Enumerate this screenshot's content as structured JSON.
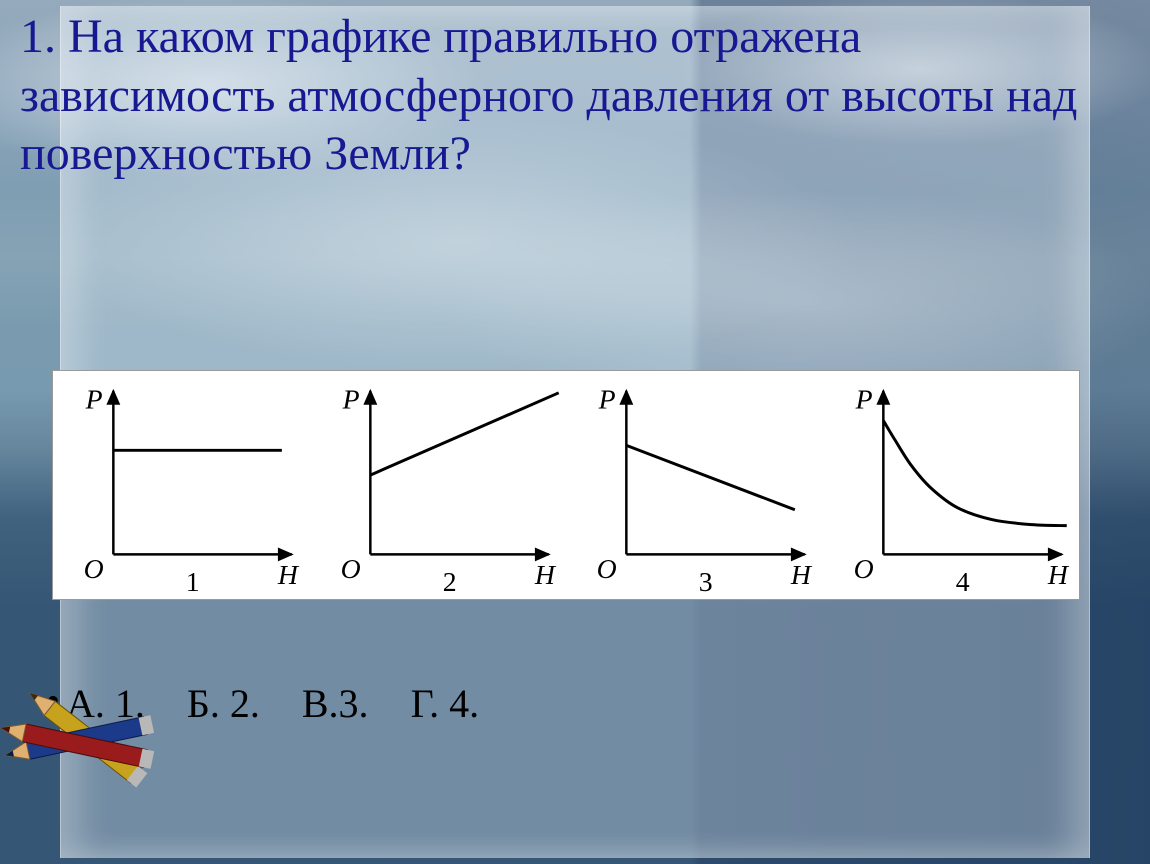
{
  "question_text": "1. На каком графике правильно отражена зависимость атмосферного давления от высоты над поверхностью Земли?",
  "question_color": "#171892",
  "question_fontsize": 48,
  "background": {
    "sky_top": "#c9d3dc",
    "sky_mid": "#9cb8c6",
    "sea": "#2a4866",
    "panel_tint": "rgba(230,240,248,0.35)"
  },
  "charts": {
    "strip_bg": "#ffffff",
    "axis_color": "#000000",
    "axis_width": 2.5,
    "curve_width": 3,
    "label_font": "italic 26px Times New Roman, serif",
    "number_font": "26px Times New Roman, serif",
    "y_label": "P",
    "x_label": "H",
    "origin_label": "O",
    "cells": [
      {
        "number": "1",
        "type": "constant",
        "curve": [
          [
            60,
            80
          ],
          [
            230,
            80
          ]
        ]
      },
      {
        "number": "2",
        "type": "linear-increasing",
        "curve": [
          [
            60,
            105
          ],
          [
            250,
            22
          ]
        ]
      },
      {
        "number": "3",
        "type": "linear-decreasing",
        "curve": [
          [
            60,
            75
          ],
          [
            230,
            140
          ]
        ]
      },
      {
        "number": "4",
        "type": "exponential-decay",
        "curve": [
          [
            60,
            50
          ],
          [
            72,
            70
          ],
          [
            88,
            95
          ],
          [
            108,
            118
          ],
          [
            135,
            138
          ],
          [
            170,
            150
          ],
          [
            210,
            155
          ],
          [
            245,
            156
          ]
        ]
      }
    ]
  },
  "answers": {
    "bullet": "•",
    "options": [
      {
        "key": "А",
        "label": "А. 1."
      },
      {
        "key": "Б",
        "label": "Б. 2."
      },
      {
        "key": "В",
        "label": "В.3."
      },
      {
        "key": "Г",
        "label": "Г. 4."
      }
    ],
    "color": "#000000",
    "fontsize": 40
  },
  "pencils": {
    "colors": {
      "red": {
        "body": "#9a1b1b",
        "tip": "#e0b070"
      },
      "blue": {
        "body": "#1b3a8a",
        "tip": "#e0b070"
      },
      "yellow": {
        "body": "#c7a31d",
        "tip": "#e0b070"
      }
    }
  }
}
